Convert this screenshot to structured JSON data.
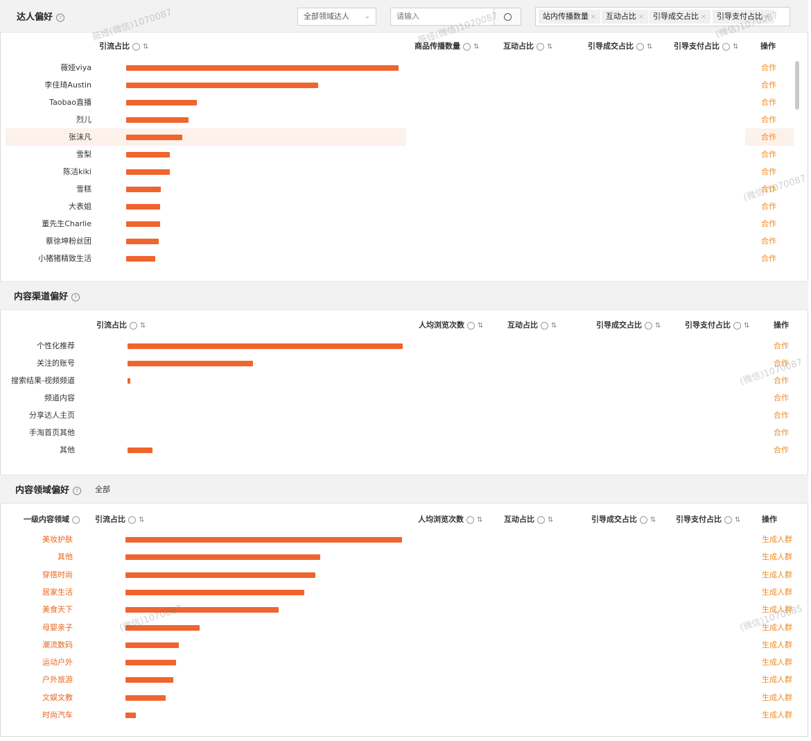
{
  "colors": {
    "bar": "#f0642d",
    "action": "#f08a1e",
    "label_orange": "#e8651e"
  },
  "section1": {
    "title": "达人偏好",
    "filter_placeholder": "全部领域达人",
    "search_placeholder": "请输入",
    "metric_tags": [
      "站内传播数量",
      "互动占比",
      "引导成交占比",
      "引导支付占比"
    ],
    "columns": [
      "引流占比",
      "商品传播数量",
      "互动占比",
      "引导成交占比",
      "引导支付占比",
      "操作"
    ],
    "rows": [
      {
        "label": "薇娅viya",
        "value": 100,
        "action": "合作"
      },
      {
        "label": "李佳琦Austin",
        "value": 70.5,
        "action": "合作"
      },
      {
        "label": "Taobao直播",
        "value": 26,
        "action": "合作"
      },
      {
        "label": "烈儿",
        "value": 23,
        "action": "合作"
      },
      {
        "label": "张沫凡",
        "value": 20.5,
        "action": "合作"
      },
      {
        "label": "雪梨",
        "value": 16,
        "action": "合作"
      },
      {
        "label": "陈洁kiki",
        "value": 16,
        "action": "合作"
      },
      {
        "label": "雪糕",
        "value": 12.7,
        "action": "合作"
      },
      {
        "label": "大表姐",
        "value": 12.5,
        "action": "合作"
      },
      {
        "label": "董先生Charlie",
        "value": 12.4,
        "action": "合作"
      },
      {
        "label": "蔡徐坤粉丝团",
        "value": 12,
        "action": "合作"
      },
      {
        "label": "小猪猪精致生活",
        "value": 10.7,
        "action": "合作"
      }
    ]
  },
  "section2": {
    "title": "内容渠道偏好",
    "columns": [
      "引流占比",
      "人均浏览次数",
      "互动占比",
      "引导成交占比",
      "引导支付占比",
      "操作"
    ],
    "rows": [
      {
        "label": "个性化推荐",
        "value": 100,
        "action": "合作"
      },
      {
        "label": "关注的账号",
        "value": 45.5,
        "action": "合作"
      },
      {
        "label": "搜索结果-视频频道",
        "value": 1,
        "action": "合作"
      },
      {
        "label": "频道内容",
        "value": 0,
        "action": "合作"
      },
      {
        "label": "分享达人主页",
        "value": 0,
        "action": "合作"
      },
      {
        "label": "手淘首页其他",
        "value": 0,
        "action": "合作"
      },
      {
        "label": "其他",
        "value": 9,
        "action": "合作"
      }
    ]
  },
  "section3": {
    "title": "内容领域偏好",
    "filter_label": "全部",
    "columns": [
      "一级内容领域",
      "引流占比",
      "人均浏览次数",
      "互动占比",
      "引导成交占比",
      "引导支付占比",
      "操作"
    ],
    "rows": [
      {
        "label": "美妆护肤",
        "value": 100,
        "action": "生成人群"
      },
      {
        "label": "其他",
        "value": 70.5,
        "action": "生成人群"
      },
      {
        "label": "穿搭时尚",
        "value": 68.7,
        "action": "生成人群"
      },
      {
        "label": "居家生活",
        "value": 64.7,
        "action": "生成人群"
      },
      {
        "label": "美食天下",
        "value": 55.5,
        "action": "生成人群"
      },
      {
        "label": "母婴亲子",
        "value": 26.7,
        "action": "生成人群"
      },
      {
        "label": "潮流数码",
        "value": 19.2,
        "action": "生成人群"
      },
      {
        "label": "运动户外",
        "value": 18.2,
        "action": "生成人群"
      },
      {
        "label": "户外旅游",
        "value": 17.2,
        "action": "生成人群"
      },
      {
        "label": "文娱文教",
        "value": 14.5,
        "action": "生成人群"
      },
      {
        "label": "时尚汽车",
        "value": 3.7,
        "action": "生成人群"
      }
    ]
  }
}
